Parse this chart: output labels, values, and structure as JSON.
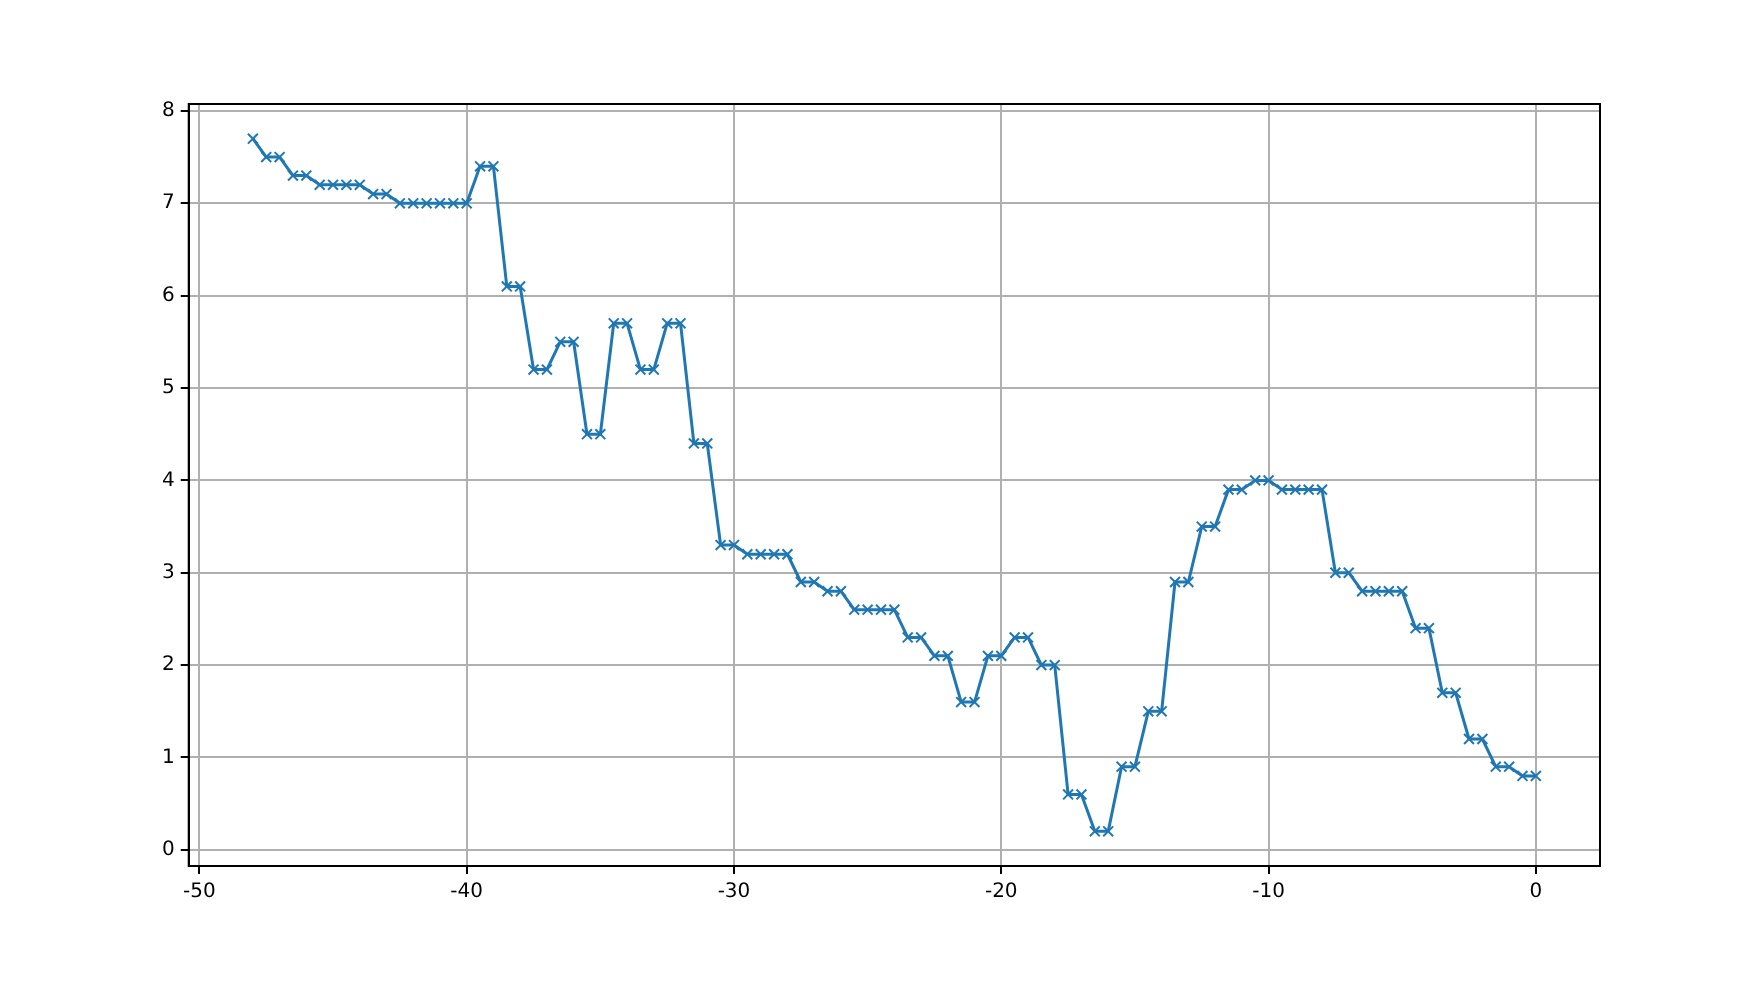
{
  "chart_data": {
    "type": "line",
    "x": [
      -48,
      -47.5,
      -47,
      -46.5,
      -46,
      -45.5,
      -45,
      -44.5,
      -44,
      -43.5,
      -43,
      -42.5,
      -42,
      -41.5,
      -41,
      -40.5,
      -40,
      -39.5,
      -39,
      -38.5,
      -38,
      -37.5,
      -37,
      -36.5,
      -36,
      -35.5,
      -35,
      -34.5,
      -34,
      -33.5,
      -33,
      -32.5,
      -32,
      -31.5,
      -31,
      -30.5,
      -30,
      -29.5,
      -29,
      -28.5,
      -28,
      -27.5,
      -27,
      -26.5,
      -26,
      -25.5,
      -25,
      -24.5,
      -24,
      -23.5,
      -23,
      -22.5,
      -22,
      -21.5,
      -21,
      -20.5,
      -20,
      -19.5,
      -19,
      -18.5,
      -18,
      -17.5,
      -17,
      -16.5,
      -16,
      -15.5,
      -15,
      -14.5,
      -14,
      -13.5,
      -13,
      -12.5,
      -12,
      -11.5,
      -11,
      -10.5,
      -10,
      -9.5,
      -9,
      -8.5,
      -8,
      -7.5,
      -7,
      -6.5,
      -6,
      -5.5,
      -5,
      -4.5,
      -4,
      -3.5,
      -3,
      -2.5,
      -2,
      -1.5,
      -1,
      -0.5,
      0
    ],
    "series": [
      {
        "color": "#1f77b4",
        "values": [
          7.7,
          7.5,
          7.5,
          7.3,
          7.3,
          7.2,
          7.2,
          7.2,
          7.2,
          7.1,
          7.1,
          7.0,
          7.0,
          7.0,
          7.0,
          7.0,
          7.0,
          7.4,
          7.4,
          6.1,
          6.1,
          5.2,
          5.2,
          5.5,
          5.5,
          4.5,
          4.5,
          5.7,
          5.7,
          5.2,
          5.2,
          5.7,
          5.7,
          4.4,
          4.4,
          3.3,
          3.3,
          3.2,
          3.2,
          3.2,
          3.2,
          2.9,
          2.9,
          2.8,
          2.8,
          2.6,
          2.6,
          2.6,
          2.6,
          2.3,
          2.3,
          2.1,
          2.1,
          1.6,
          1.6,
          2.1,
          2.1,
          2.3,
          2.3,
          2.0,
          2.0,
          0.6,
          0.6,
          0.2,
          0.2,
          0.9,
          0.9,
          1.5,
          1.5,
          2.9,
          2.9,
          3.5,
          3.5,
          3.9,
          3.9,
          4.0,
          4.0,
          3.9,
          3.9,
          3.9,
          3.9,
          3.0,
          3.0,
          2.8,
          2.8,
          2.8,
          2.8,
          2.4,
          2.4,
          1.7,
          1.7,
          1.2,
          1.2,
          0.9,
          0.9,
          0.8,
          0.8
        ]
      }
    ],
    "xlim": [
      -50.4,
      2.4
    ],
    "xticks": [
      -50,
      -40,
      -30,
      -20,
      -10,
      0
    ],
    "ylim": [
      -0.175,
      8.075
    ],
    "yticks": [
      0,
      1,
      2,
      3,
      4,
      5,
      6,
      7,
      8
    ],
    "grid": true,
    "marker": "cross",
    "line_style": "solid"
  }
}
